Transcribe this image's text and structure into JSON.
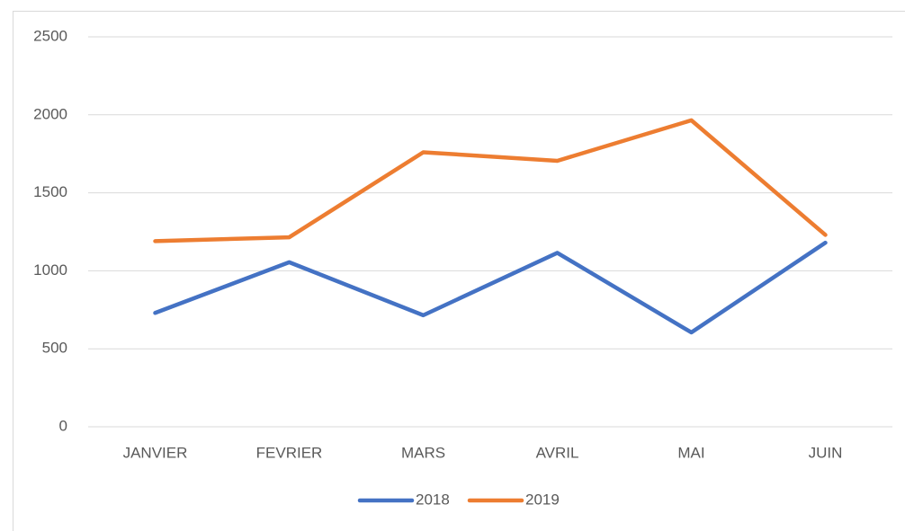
{
  "chart_data": {
    "type": "line",
    "categories": [
      "JANVIER",
      "FEVRIER",
      "MARS",
      "AVRIL",
      "MAI",
      "JUIN"
    ],
    "series": [
      {
        "name": "2018",
        "color": "#4472c4",
        "values": [
          730,
          1055,
          715,
          1115,
          605,
          1180
        ]
      },
      {
        "name": "2019",
        "color": "#ed7d31",
        "values": [
          1190,
          1215,
          1760,
          1705,
          1965,
          1230
        ]
      }
    ],
    "ylim": [
      0,
      2500
    ],
    "yticks": [
      0,
      500,
      1000,
      1500,
      2000,
      2500
    ],
    "grid": true,
    "legend": "bottom"
  }
}
